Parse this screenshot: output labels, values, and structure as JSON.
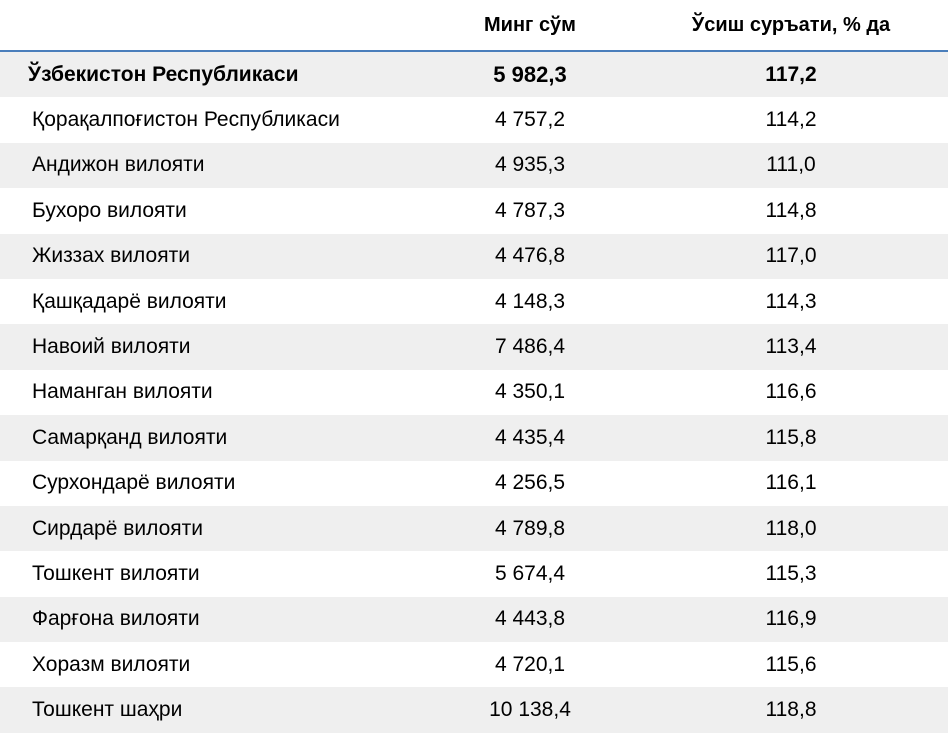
{
  "header": {
    "col_name": "",
    "col_value": "Минг сўм",
    "col_growth": "Ўсиш суръати, % да"
  },
  "total": {
    "name": "Ўзбекистон Республикаси",
    "value": "5 982,3",
    "growth": "117,2"
  },
  "rows": [
    {
      "name": "Қорақалпоғистон Республикаси",
      "value": "4 757,2",
      "growth": "114,2"
    },
    {
      "name": "Андижон вилояти",
      "value": "4 935,3",
      "growth": "111,0"
    },
    {
      "name": "Бухоро вилояти",
      "value": "4 787,3",
      "growth": "114,8"
    },
    {
      "name": "Жиззах вилояти",
      "value": "4 476,8",
      "growth": "117,0"
    },
    {
      "name": "Қашқадарё вилояти",
      "value": "4 148,3",
      "growth": "114,3"
    },
    {
      "name": "Навоий вилояти",
      "value": "7 486,4",
      "growth": "113,4"
    },
    {
      "name": "Наманган вилояти",
      "value": "4 350,1",
      "growth": "116,6"
    },
    {
      "name": "Самарқанд вилояти",
      "value": "4 435,4",
      "growth": "115,8"
    },
    {
      "name": "Сурхондарё вилояти",
      "value": "4 256,5",
      "growth": "116,1"
    },
    {
      "name": "Сирдарё вилояти",
      "value": "4 789,8",
      "growth": "118,0"
    },
    {
      "name": "Тошкент вилояти",
      "value": "5 674,4",
      "growth": "115,3"
    },
    {
      "name": "Фарғона вилояти",
      "value": "4 443,8",
      "growth": "116,9"
    },
    {
      "name": "Хоразм вилояти",
      "value": "4 720,1",
      "growth": "115,6"
    },
    {
      "name": "Тошкент шаҳри",
      "value": "10 138,4",
      "growth": "118,8"
    }
  ],
  "colors": {
    "header_rule": "#4a7ebb",
    "shaded_row": "#efefef"
  }
}
